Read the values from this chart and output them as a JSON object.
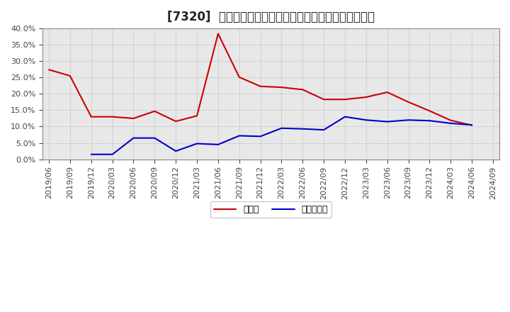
{
  "title": "[7320]  現顔金、有利子負債の総資産に対する比率の推移",
  "ylim": [
    0.0,
    0.4
  ],
  "yticks": [
    0.0,
    0.05,
    0.1,
    0.15,
    0.2,
    0.25,
    0.3,
    0.35,
    0.4
  ],
  "background_color": "#ffffff",
  "plot_bg_color": "#e8e8e8",
  "grid_color": "#888888",
  "dates": [
    "2019/06",
    "2019/09",
    "2019/12",
    "2020/03",
    "2020/06",
    "2020/09",
    "2020/12",
    "2021/03",
    "2021/06",
    "2021/09",
    "2021/12",
    "2022/03",
    "2022/06",
    "2022/09",
    "2022/12",
    "2023/03",
    "2023/06",
    "2023/09",
    "2023/12",
    "2024/03",
    "2024/06",
    "2024/09"
  ],
  "cash": [
    0.274,
    0.255,
    0.13,
    0.13,
    0.125,
    0.147,
    0.116,
    0.133,
    0.384,
    0.251,
    0.223,
    0.22,
    0.213,
    0.183,
    0.183,
    0.19,
    0.205,
    0.175,
    0.148,
    0.119,
    0.104,
    null
  ],
  "debt": [
    null,
    null,
    0.015,
    0.015,
    0.065,
    0.065,
    0.025,
    0.048,
    0.045,
    0.072,
    0.07,
    0.095,
    0.093,
    0.09,
    0.13,
    0.12,
    0.115,
    0.12,
    0.118,
    0.11,
    0.105,
    null
  ],
  "cash_color": "#cc0000",
  "debt_color": "#0000cc",
  "legend_cash": "現顔金",
  "legend_debt": "有利子負債",
  "title_fontsize": 12,
  "tick_fontsize": 8,
  "legend_fontsize": 9
}
